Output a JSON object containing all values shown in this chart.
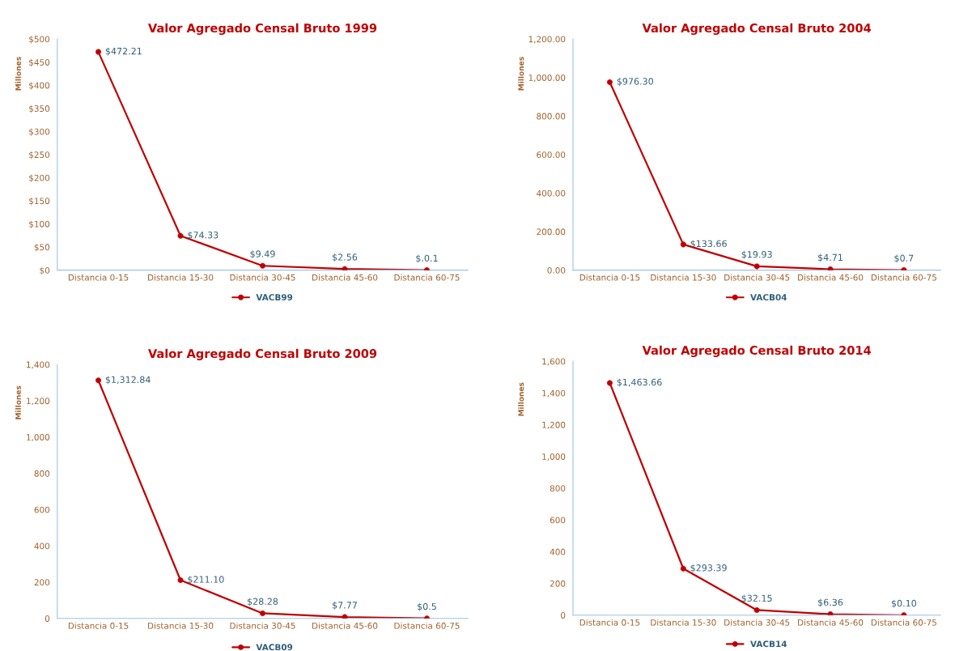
{
  "chart_data": [
    {
      "type": "line",
      "title": "Valor Agregado Censal Bruto 1999",
      "ylabel": "Millones",
      "categories": [
        "Distancia 0-15",
        "Distancia 15-30",
        "Distancia 30-45",
        "Distancia 45-60",
        "Distancia 60-75"
      ],
      "series": [
        {
          "name": "VACB99",
          "color": "#c00000",
          "values": [
            472.21,
            74.33,
            9.49,
            2.56,
            0.1
          ],
          "value_labels": [
            "$472.21",
            "$74.33",
            "$9.49",
            "$2.56",
            "$.0.1"
          ]
        }
      ],
      "ylim": [
        0,
        500
      ],
      "yticks": [
        {
          "value": 0,
          "label": "$0"
        },
        {
          "value": 50,
          "label": "$50"
        },
        {
          "value": 100,
          "label": "$100"
        },
        {
          "value": 150,
          "label": "$150"
        },
        {
          "value": 200,
          "label": "$200"
        },
        {
          "value": 250,
          "label": "$250"
        },
        {
          "value": 300,
          "label": "$300"
        },
        {
          "value": 350,
          "label": "$350"
        },
        {
          "value": 400,
          "label": "$400"
        },
        {
          "value": 450,
          "label": "$450"
        },
        {
          "value": 500,
          "label": "$500"
        }
      ],
      "marker": "circle",
      "line_style": "solid",
      "legend": "bottom",
      "grid": false
    },
    {
      "type": "line",
      "title": "Valor Agregado Censal Bruto 2004",
      "ylabel": "Millones",
      "categories": [
        "Distancia 0-15",
        "Distancia 15-30",
        "Distancia 30-45",
        "Distancia 45-60",
        "Distancia 60-75"
      ],
      "series": [
        {
          "name": "VACB04",
          "color": "#c00000",
          "values": [
            976.3,
            133.66,
            19.93,
            4.71,
            0.7
          ],
          "value_labels": [
            "$976.30",
            "$133.66",
            "$19.93",
            "$4.71",
            "$0.7"
          ]
        }
      ],
      "ylim": [
        0,
        1200
      ],
      "yticks": [
        {
          "value": 0,
          "label": "0.00"
        },
        {
          "value": 200,
          "label": "200.00"
        },
        {
          "value": 400,
          "label": "400.00"
        },
        {
          "value": 600,
          "label": "600.00"
        },
        {
          "value": 800,
          "label": "800.00"
        },
        {
          "value": 1000,
          "label": "1,000.00"
        },
        {
          "value": 1200,
          "label": "1,200.00"
        }
      ],
      "marker": "circle",
      "line_style": "solid",
      "legend": "bottom",
      "grid": false
    },
    {
      "type": "line",
      "title": "Valor Agregado Censal Bruto 2009",
      "ylabel": "Millones",
      "categories": [
        "Distancia 0-15",
        "Distancia 15-30",
        "Distancia 30-45",
        "Distancia 45-60",
        "Distancia 60-75"
      ],
      "series": [
        {
          "name": "VACB09",
          "color": "#c00000",
          "values": [
            1312.84,
            211.1,
            28.28,
            7.77,
            0.5
          ],
          "value_labels": [
            "$1,312.84",
            "$211.10",
            "$28.28",
            "$7.77",
            "$0.5"
          ]
        }
      ],
      "ylim": [
        0,
        1400
      ],
      "yticks": [
        0,
        200,
        400,
        600,
        800,
        {
          "value": 1000,
          "label": "1,000"
        },
        {
          "value": 1200,
          "label": "1,200"
        },
        {
          "value": 1400,
          "label": "1,400"
        }
      ],
      "marker": "circle",
      "line_style": "solid",
      "legend": "bottom",
      "grid": false
    },
    {
      "type": "line",
      "title": "Valor Agregado Censal Bruto 2014",
      "ylabel": "Millones",
      "categories": [
        "Distancia 0-15",
        "Distancia 15-30",
        "Distancia 30-45",
        "Distancia 45-60",
        "Distancia 60-75"
      ],
      "series": [
        {
          "name": "VACB14",
          "color": "#c00000",
          "values": [
            1463.66,
            293.39,
            32.15,
            6.36,
            0.1
          ],
          "value_labels": [
            "$1,463.66",
            "$293.39",
            "$32.15",
            "$6.36",
            "$0.10"
          ]
        }
      ],
      "ylim": [
        0,
        1600
      ],
      "yticks": [
        0,
        200,
        400,
        600,
        800,
        {
          "value": 1000,
          "label": "1,000"
        },
        {
          "value": 1200,
          "label": "1,200"
        },
        {
          "value": 1400,
          "label": "1,400"
        },
        {
          "value": 1600,
          "label": "1,600"
        }
      ],
      "marker": "circle",
      "line_style": "solid",
      "legend": "bottom",
      "grid": false
    }
  ]
}
